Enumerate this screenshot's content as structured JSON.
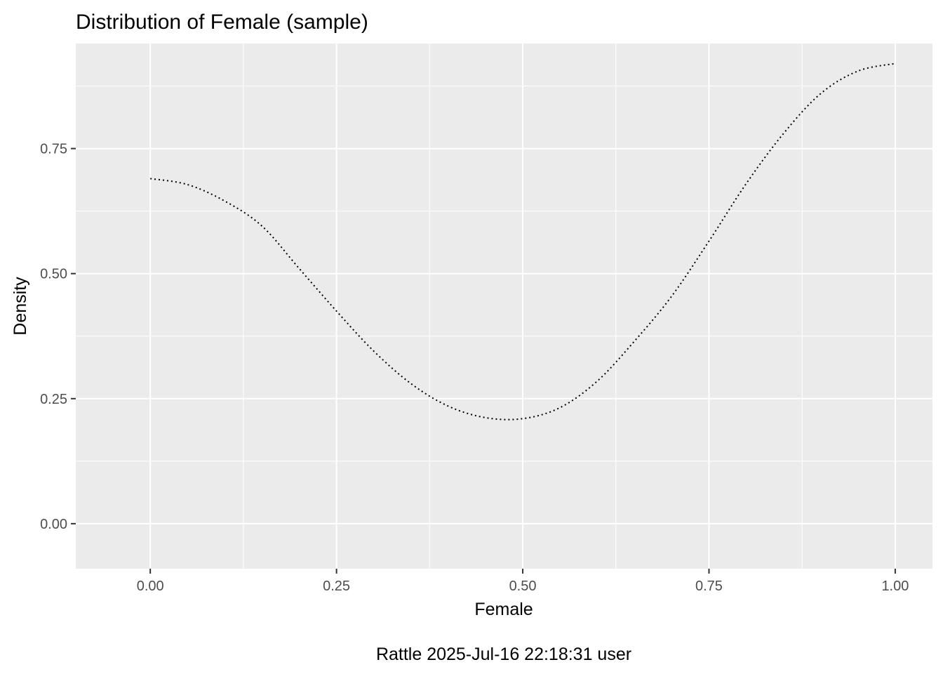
{
  "chart_data": {
    "type": "line",
    "title": "Distribution of Female (sample)",
    "xlabel": "Female",
    "ylabel": "Density",
    "caption": "Rattle 2025-Jul-16 22:18:31 user",
    "xlim": [
      -0.1,
      1.05
    ],
    "ylim": [
      -0.09,
      0.96
    ],
    "x_ticks": [
      0.0,
      0.25,
      0.5,
      0.75,
      1.0
    ],
    "x_tick_labels": [
      "0.00",
      "0.25",
      "0.50",
      "0.75",
      "1.00"
    ],
    "y_ticks": [
      0.0,
      0.25,
      0.5,
      0.75
    ],
    "y_tick_labels": [
      "0.00",
      "0.25",
      "0.50",
      "0.75"
    ],
    "grid": true,
    "line_style": "dotted",
    "colors": {
      "panel_background": "#ebebeb",
      "grid_line": "#ffffff",
      "line": "#000000",
      "tick_text": "#4d4d4d"
    },
    "series": [
      {
        "x": [
          0.0,
          0.05,
          0.1,
          0.15,
          0.2,
          0.25,
          0.3,
          0.35,
          0.4,
          0.45,
          0.5,
          0.55,
          0.6,
          0.65,
          0.7,
          0.75,
          0.8,
          0.85,
          0.9,
          0.95,
          1.0
        ],
        "values": [
          0.69,
          0.678,
          0.645,
          0.595,
          0.51,
          0.425,
          0.345,
          0.28,
          0.235,
          0.212,
          0.21,
          0.232,
          0.285,
          0.365,
          0.455,
          0.565,
          0.68,
          0.78,
          0.86,
          0.905,
          0.92
        ]
      }
    ]
  }
}
